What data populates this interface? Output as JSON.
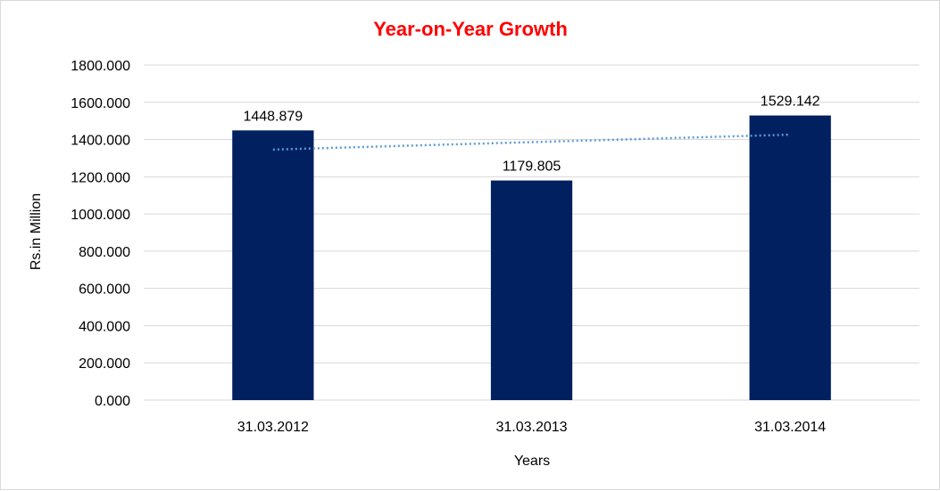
{
  "chart_data": {
    "type": "bar",
    "title": "Year-on-Year Growth",
    "xlabel": "Years",
    "ylabel": "Rs.in Million",
    "categories": [
      "31.03.2012",
      "31.03.2013",
      "31.03.2014"
    ],
    "values": [
      1448.879,
      1179.805,
      1529.142
    ],
    "value_labels": [
      "1448.879",
      "1179.805",
      "1529.142"
    ],
    "ylim": [
      0,
      1800
    ],
    "yticks": [
      0,
      200,
      400,
      600,
      800,
      1000,
      1200,
      1400,
      1600,
      1800
    ],
    "ytick_labels": [
      "0.000",
      "200.000",
      "400.000",
      "600.000",
      "800.000",
      "1000.000",
      "1200.000",
      "1400.000",
      "1600.000",
      "1800.000"
    ],
    "trendline": "linear",
    "grid": true,
    "legend": "none",
    "colors": {
      "bar": "#002060",
      "title": "#ff0000",
      "trendline": "#5b9bd5",
      "grid": "#d9d9d9"
    }
  }
}
